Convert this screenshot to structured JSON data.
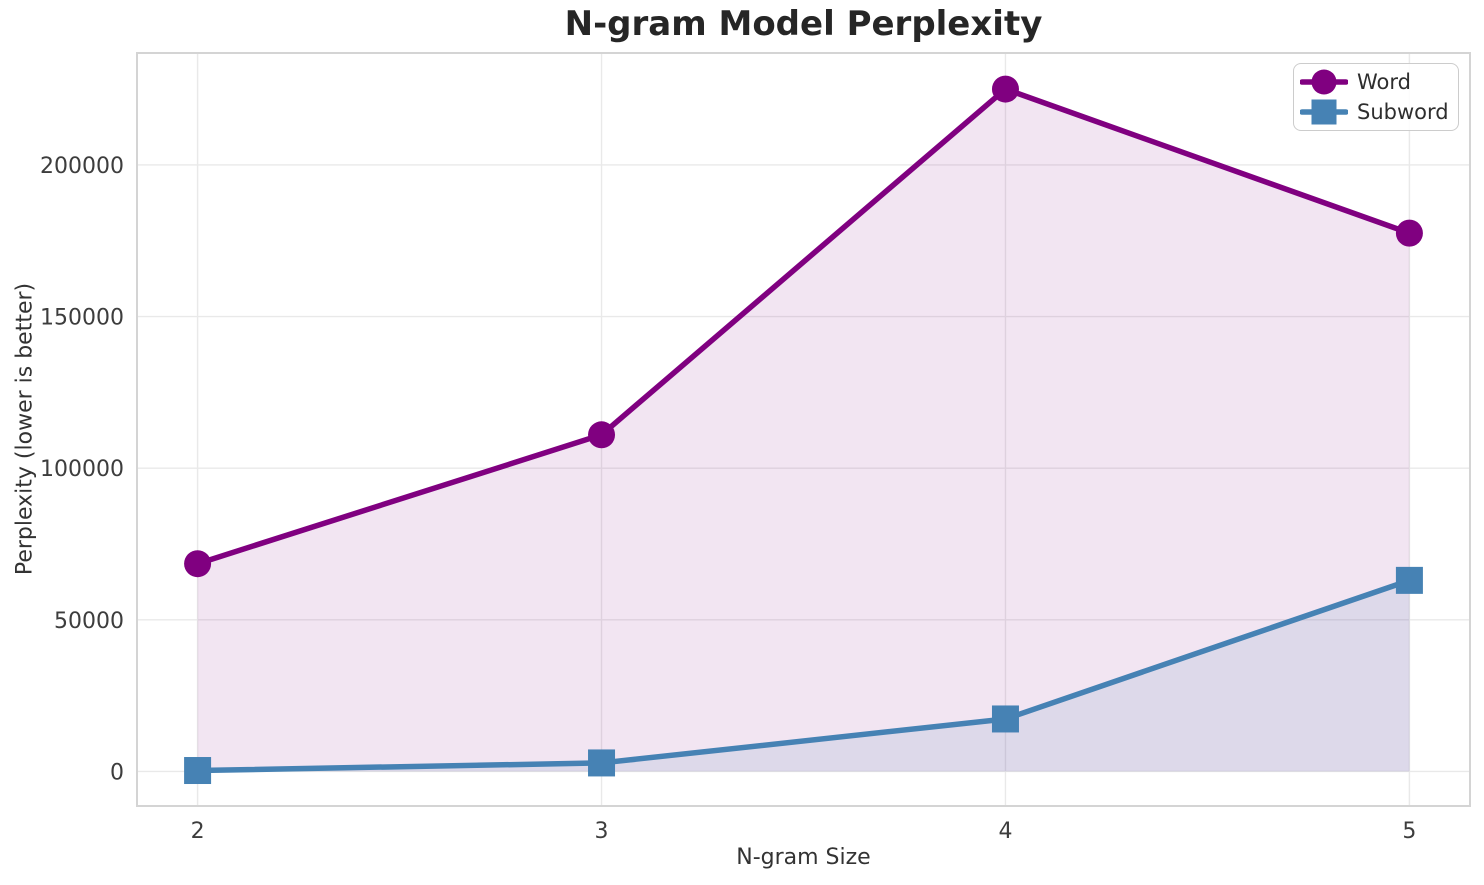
{
  "chart_data": {
    "type": "line",
    "title": "N-gram Model Perplexity",
    "xlabel": "N-gram Size",
    "ylabel": "Perplexity (lower is better)",
    "x": [
      2,
      3,
      4,
      5
    ],
    "series": [
      {
        "name": "Word",
        "values": [
          68500,
          111000,
          225000,
          177500
        ],
        "color": "#800080",
        "marker": "circle",
        "fill_alpha": 0.1
      },
      {
        "name": "Subword",
        "values": [
          300,
          2800,
          17300,
          63000
        ],
        "color": "#4682b4",
        "marker": "square",
        "fill_alpha": 0.12
      }
    ],
    "xticks": [
      "2",
      "3",
      "4",
      "5"
    ],
    "xtick_values": [
      2,
      3,
      4,
      5
    ],
    "yticks": [
      "0",
      "50000",
      "100000",
      "150000",
      "200000"
    ],
    "ytick_values": [
      0,
      50000,
      100000,
      150000,
      200000
    ],
    "xlim": [
      1.85,
      5.15
    ],
    "ylim": [
      -11400,
      236900
    ],
    "fill_to": 0,
    "grid": true,
    "legend_position": "upper right",
    "colors": {
      "background": "#ffffff",
      "grid": "#e9e9e9",
      "spine": "#d4d4d4",
      "title_text": "#262626",
      "label_text": "#333333",
      "tick_text": "#3d3d3d"
    }
  }
}
